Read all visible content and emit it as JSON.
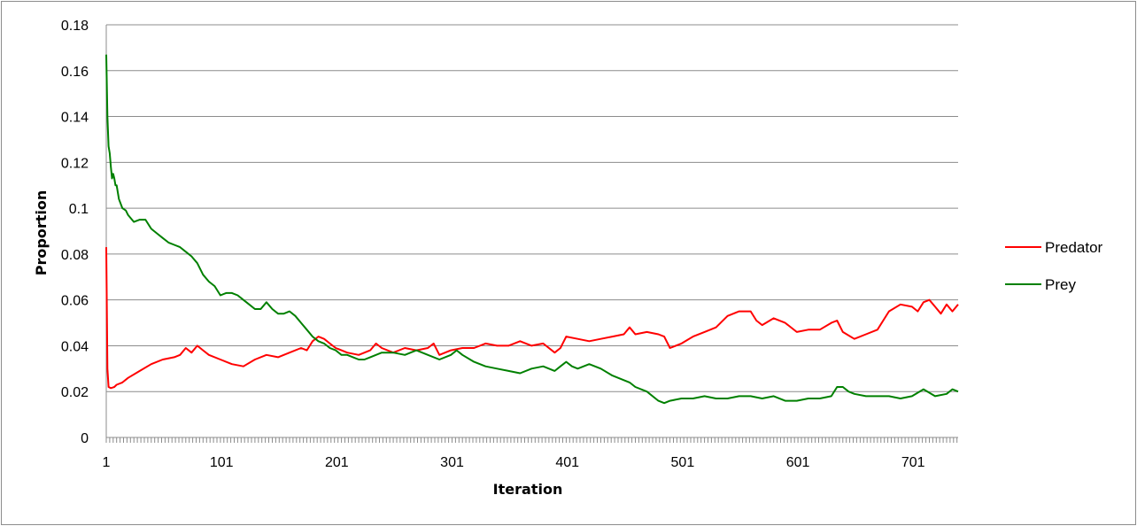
{
  "chart_data": {
    "type": "line",
    "xlabel": "Iteration",
    "ylabel": "Proportion",
    "ylim": [
      0,
      0.18
    ],
    "y_ticks": [
      "0",
      "0.02",
      "0.04",
      "0.06",
      "0.08",
      "0.1",
      "0.12",
      "0.14",
      "0.16",
      "0.18"
    ],
    "xlim": [
      1,
      740
    ],
    "x_tick_labels": [
      "1",
      "101",
      "201",
      "301",
      "401",
      "501",
      "601",
      "701"
    ],
    "grid": true,
    "legend_position": "right",
    "series": [
      {
        "name": "Predator",
        "color": "#ff0000",
        "x": [
          1,
          2,
          3,
          5,
          8,
          10,
          15,
          20,
          30,
          40,
          50,
          60,
          65,
          70,
          75,
          80,
          85,
          90,
          100,
          110,
          120,
          130,
          140,
          150,
          160,
          170,
          175,
          180,
          185,
          190,
          195,
          200,
          205,
          210,
          220,
          230,
          235,
          240,
          250,
          260,
          270,
          280,
          285,
          290,
          300,
          310,
          320,
          330,
          340,
          350,
          360,
          370,
          380,
          390,
          395,
          400,
          410,
          420,
          430,
          440,
          450,
          455,
          460,
          470,
          480,
          485,
          490,
          500,
          510,
          520,
          530,
          540,
          550,
          560,
          565,
          570,
          580,
          590,
          600,
          610,
          620,
          630,
          635,
          640,
          650,
          660,
          670,
          680,
          690,
          700,
          705,
          710,
          715,
          720,
          725,
          730,
          735,
          740
        ],
        "values": [
          0.083,
          0.03,
          0.022,
          0.0215,
          0.022,
          0.023,
          0.024,
          0.026,
          0.029,
          0.032,
          0.034,
          0.035,
          0.036,
          0.039,
          0.037,
          0.04,
          0.038,
          0.036,
          0.034,
          0.032,
          0.031,
          0.034,
          0.036,
          0.035,
          0.037,
          0.039,
          0.038,
          0.042,
          0.044,
          0.043,
          0.041,
          0.039,
          0.038,
          0.037,
          0.036,
          0.038,
          0.041,
          0.039,
          0.037,
          0.039,
          0.038,
          0.039,
          0.041,
          0.036,
          0.038,
          0.039,
          0.039,
          0.041,
          0.04,
          0.04,
          0.042,
          0.04,
          0.041,
          0.037,
          0.039,
          0.044,
          0.043,
          0.042,
          0.043,
          0.044,
          0.045,
          0.048,
          0.045,
          0.046,
          0.045,
          0.044,
          0.039,
          0.041,
          0.044,
          0.046,
          0.048,
          0.053,
          0.055,
          0.055,
          0.051,
          0.049,
          0.052,
          0.05,
          0.046,
          0.047,
          0.047,
          0.05,
          0.051,
          0.046,
          0.043,
          0.045,
          0.047,
          0.055,
          0.058,
          0.057,
          0.055,
          0.059,
          0.06,
          0.057,
          0.054,
          0.058,
          0.055,
          0.058
        ]
      },
      {
        "name": "Prey",
        "color": "#008000",
        "x": [
          1,
          2,
          3,
          4,
          5,
          6,
          7,
          8,
          9,
          10,
          12,
          15,
          18,
          20,
          25,
          30,
          35,
          40,
          45,
          50,
          55,
          60,
          65,
          70,
          75,
          80,
          85,
          90,
          95,
          100,
          105,
          110,
          115,
          120,
          125,
          130,
          135,
          140,
          145,
          150,
          155,
          160,
          165,
          170,
          175,
          180,
          185,
          190,
          195,
          200,
          205,
          210,
          215,
          220,
          225,
          230,
          235,
          240,
          250,
          260,
          270,
          280,
          290,
          300,
          305,
          310,
          320,
          330,
          340,
          350,
          360,
          370,
          380,
          385,
          390,
          395,
          400,
          405,
          410,
          420,
          430,
          440,
          450,
          455,
          460,
          470,
          480,
          485,
          490,
          500,
          510,
          520,
          530,
          540,
          550,
          560,
          570,
          580,
          590,
          600,
          610,
          620,
          630,
          635,
          640,
          645,
          650,
          660,
          670,
          680,
          690,
          700,
          710,
          720,
          730,
          735,
          740
        ],
        "values": [
          0.167,
          0.14,
          0.127,
          0.124,
          0.118,
          0.113,
          0.115,
          0.113,
          0.11,
          0.11,
          0.104,
          0.1,
          0.099,
          0.097,
          0.094,
          0.095,
          0.095,
          0.091,
          0.089,
          0.087,
          0.085,
          0.084,
          0.083,
          0.081,
          0.079,
          0.076,
          0.071,
          0.068,
          0.066,
          0.062,
          0.063,
          0.063,
          0.062,
          0.06,
          0.058,
          0.056,
          0.056,
          0.059,
          0.056,
          0.054,
          0.054,
          0.055,
          0.053,
          0.05,
          0.047,
          0.044,
          0.042,
          0.041,
          0.039,
          0.038,
          0.036,
          0.036,
          0.035,
          0.034,
          0.034,
          0.035,
          0.036,
          0.037,
          0.037,
          0.036,
          0.038,
          0.036,
          0.034,
          0.036,
          0.038,
          0.036,
          0.033,
          0.031,
          0.03,
          0.029,
          0.028,
          0.03,
          0.031,
          0.03,
          0.029,
          0.031,
          0.033,
          0.031,
          0.03,
          0.032,
          0.03,
          0.027,
          0.025,
          0.024,
          0.022,
          0.02,
          0.016,
          0.015,
          0.016,
          0.017,
          0.017,
          0.018,
          0.017,
          0.017,
          0.018,
          0.018,
          0.017,
          0.018,
          0.016,
          0.016,
          0.017,
          0.017,
          0.018,
          0.022,
          0.022,
          0.02,
          0.019,
          0.018,
          0.018,
          0.018,
          0.017,
          0.018,
          0.021,
          0.018,
          0.019,
          0.021,
          0.02
        ]
      }
    ]
  }
}
